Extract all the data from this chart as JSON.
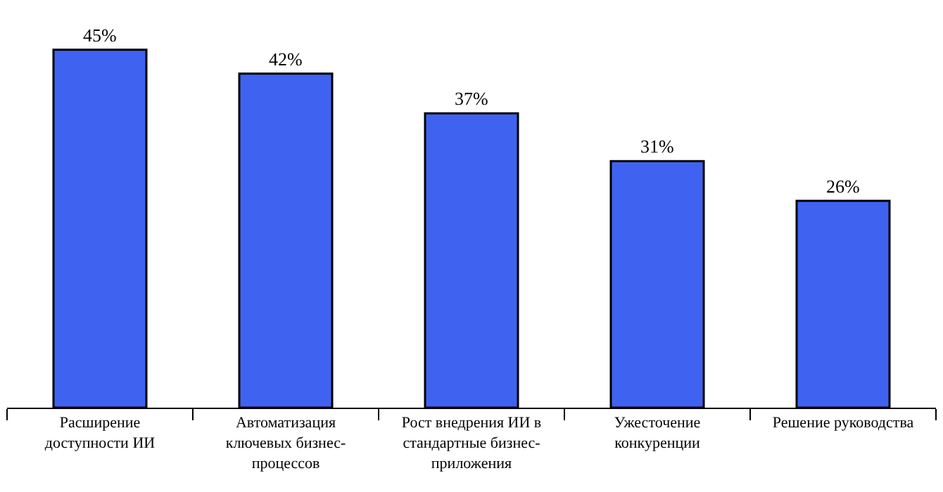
{
  "chart_data": {
    "type": "bar",
    "categories": [
      "Расширение доступности ИИ",
      "Автоматизация ключевых бизнес-процессов",
      "Рост внедрения ИИ в стандартные бизнес-приложения",
      "Ужесточение конкуренции",
      "Решение руководства"
    ],
    "values": [
      45,
      42,
      37,
      31,
      26
    ],
    "value_labels": [
      "45%",
      "42%",
      "37%",
      "31%",
      "26%"
    ],
    "color": "#3f63f0",
    "legend": false
  }
}
